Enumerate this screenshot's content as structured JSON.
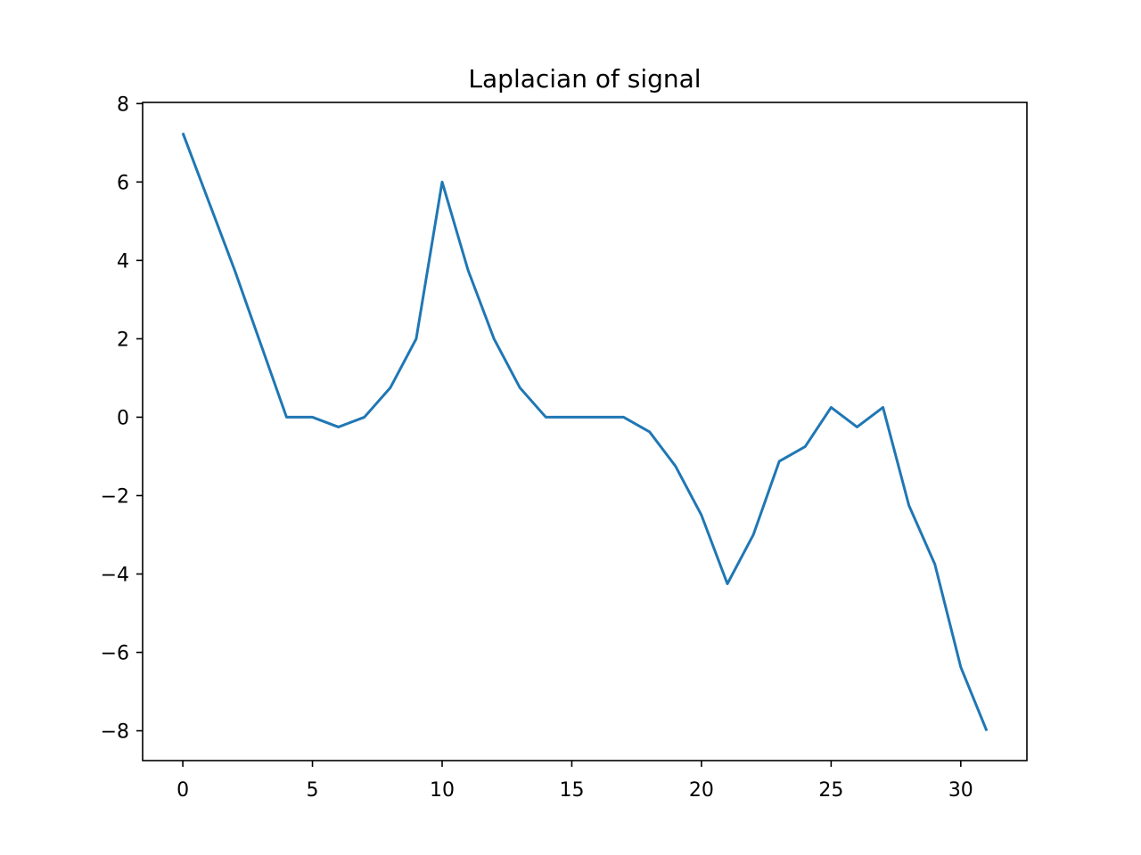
{
  "chart_data": {
    "type": "line",
    "title": "Laplacian of signal",
    "xlabel": "",
    "ylabel": "",
    "xlim": [
      -1.55,
      32.55
    ],
    "ylim": [
      -8.76,
      8.03
    ],
    "xticks": [
      0,
      5,
      10,
      15,
      20,
      25,
      30
    ],
    "yticks": [
      -8,
      -6,
      -4,
      -2,
      0,
      2,
      4,
      6,
      8
    ],
    "xtick_labels": [
      "0",
      "5",
      "10",
      "15",
      "20",
      "25",
      "30"
    ],
    "ytick_labels": [
      "−8",
      "−6",
      "−4",
      "−2",
      "0",
      "2",
      "4",
      "6",
      "8"
    ],
    "grid": false,
    "series": [
      {
        "color": "#1f77b4",
        "x": [
          0,
          1,
          2,
          3,
          4,
          5,
          6,
          7,
          8,
          9,
          10,
          11,
          12,
          13,
          14,
          15,
          16,
          17,
          18,
          19,
          20,
          21,
          22,
          23,
          24,
          25,
          26,
          27,
          28,
          29,
          30,
          31
        ],
        "y": [
          7.25,
          5.5,
          3.75,
          1.875,
          0,
          0,
          -0.25,
          0,
          0.75,
          2,
          6,
          3.75,
          2,
          0.75,
          0,
          0,
          0,
          0,
          -0.375,
          -1.25,
          -2.5,
          -4.25,
          -3,
          -1.125,
          -0.75,
          0.25,
          -0.25,
          0.25,
          -2.25,
          -3.75,
          -6.375,
          -8
        ]
      }
    ]
  }
}
